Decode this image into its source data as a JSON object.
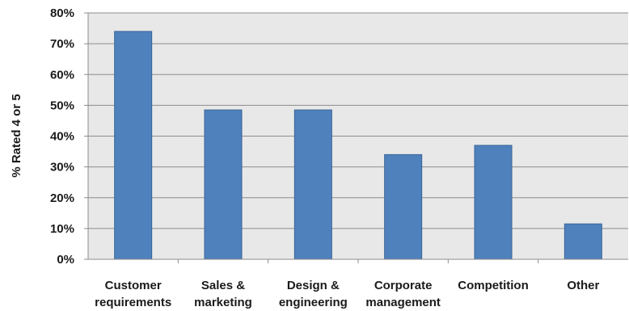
{
  "chart_data": {
    "type": "bar",
    "title": "",
    "xlabel": "",
    "ylabel": "% Rated 4 or 5",
    "ylim": [
      0,
      80
    ],
    "yticks": [
      "0%",
      "10%",
      "20%",
      "30%",
      "40%",
      "50%",
      "60%",
      "70%",
      "80%"
    ],
    "categories": [
      [
        "Customer",
        "requirements"
      ],
      [
        "Sales &",
        "marketing"
      ],
      [
        "Design &",
        "engineering"
      ],
      [
        "Corporate",
        "management"
      ],
      [
        "Competition"
      ],
      [
        "Other"
      ]
    ],
    "values": [
      74,
      48.5,
      48.5,
      34,
      37,
      11.5
    ],
    "grid": true,
    "colors": {
      "bar": "#4f81bd",
      "bar_border": "#3a6496",
      "plot_bg": "#e8e8e8",
      "grid": "#8c8c8c"
    }
  }
}
